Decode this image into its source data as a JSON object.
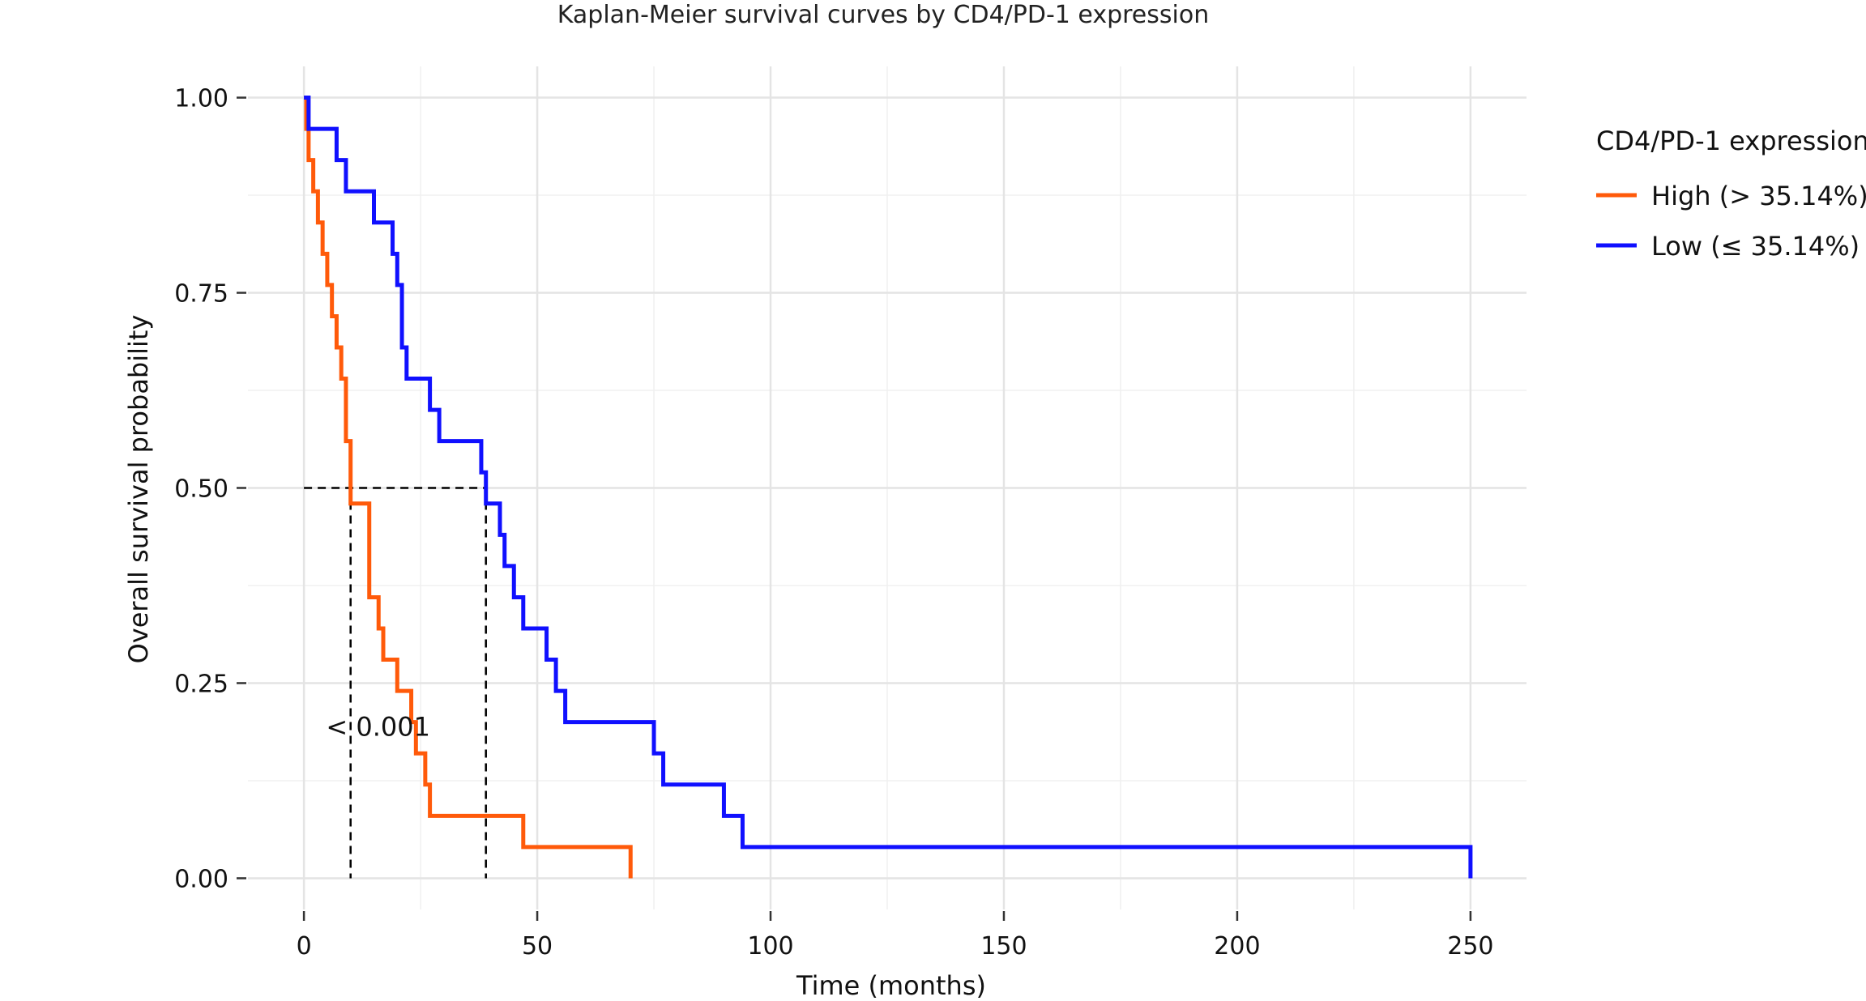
{
  "chart_data": {
    "type": "line",
    "title": "Kaplan-Meier survival curves by CD4/PD-1 expression",
    "xlabel": "Time (months)",
    "ylabel": "Overall survival probability",
    "xlim": [
      -12,
      262
    ],
    "ylim": [
      -0.04,
      1.04
    ],
    "x_ticks": [
      0,
      50,
      100,
      150,
      200,
      250
    ],
    "x_tick_labels": [
      "0",
      "50",
      "100",
      "150",
      "200",
      "250"
    ],
    "y_ticks": [
      0,
      0.25,
      0.5,
      0.75,
      1.0
    ],
    "y_tick_labels": [
      "0.00",
      "0.25",
      "0.50",
      "0.75",
      "1.00"
    ],
    "grid": true,
    "legend": {
      "title": "CD4/PD-1 expression",
      "position": "right"
    },
    "annotation": "< 0.001",
    "annotation_x": 3,
    "annotation_y": 0.195,
    "median_survival": [
      {
        "series": "High (> 35.14%)",
        "x": 10,
        "y": 0.5
      },
      {
        "series": "Low (≤ 35.14%)",
        "x": 39,
        "y": 0.5
      }
    ],
    "series": [
      {
        "name": "High (> 35.14%)",
        "color": "#ff5a0a",
        "x": [
          0,
          0.5,
          1,
          2,
          3,
          4,
          5,
          6,
          7,
          8,
          9,
          10,
          14,
          16,
          17,
          20,
          23,
          24,
          26,
          27,
          30,
          47,
          50,
          70,
          70
        ],
        "y": [
          1.0,
          0.96,
          0.92,
          0.88,
          0.84,
          0.8,
          0.76,
          0.72,
          0.68,
          0.64,
          0.56,
          0.48,
          0.36,
          0.32,
          0.28,
          0.24,
          0.2,
          0.16,
          0.12,
          0.08,
          0.08,
          0.04,
          0.04,
          0.04,
          0.0
        ]
      },
      {
        "name": "Low (≤ 35.14%)",
        "color": "#1010ff",
        "x": [
          0,
          1,
          7,
          8,
          9,
          15,
          17,
          19,
          20,
          21,
          22,
          27,
          29,
          38,
          39,
          42,
          43,
          45,
          47,
          52,
          54,
          56,
          75,
          77,
          90,
          94,
          200,
          250,
          250
        ],
        "y": [
          1.0,
          0.96,
          0.92,
          0.92,
          0.88,
          0.84,
          0.84,
          0.8,
          0.76,
          0.68,
          0.64,
          0.6,
          0.56,
          0.52,
          0.48,
          0.44,
          0.4,
          0.36,
          0.32,
          0.28,
          0.24,
          0.2,
          0.16,
          0.12,
          0.08,
          0.04,
          0.04,
          0.04,
          0.0
        ]
      }
    ]
  }
}
